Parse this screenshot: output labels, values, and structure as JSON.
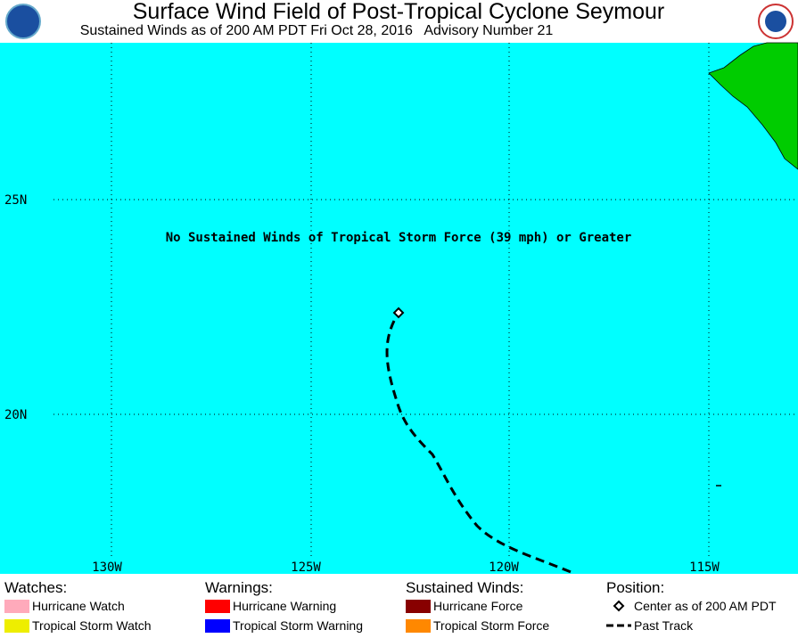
{
  "header": {
    "title": "Surface Wind Field of Post-Tropical Cyclone Seymour",
    "subtitle": "Sustained Winds as of 200 AM PDT Fri Oct 28, 2016   Advisory Number 21"
  },
  "map": {
    "latitudes": [
      "25N",
      "20N"
    ],
    "longitudes": [
      "130W",
      "125W",
      "120W",
      "115W"
    ],
    "annotation": "No Sustained Winds of Tropical Storm Force (39 mph) or Greater"
  },
  "legend": {
    "columns": [
      {
        "heading": "Watches:",
        "items": [
          {
            "label": "Hurricane Watch",
            "color": "#ffaabb"
          },
          {
            "label": "Tropical Storm Watch",
            "color": "#eeee00"
          }
        ]
      },
      {
        "heading": "Warnings:",
        "items": [
          {
            "label": "Hurricane Warning",
            "color": "#ff0000"
          },
          {
            "label": "Tropical Storm Warning",
            "color": "#0000ff"
          }
        ]
      },
      {
        "heading": "Sustained Winds:",
        "items": [
          {
            "label": "Hurricane Force",
            "color": "#880000"
          },
          {
            "label": "Tropical Storm Force",
            "color": "#ff8800"
          }
        ]
      },
      {
        "heading": "Position:",
        "items": [
          {
            "label": "Center as of 200 AM PDT",
            "symbol": "diamond"
          },
          {
            "label": "Past Track",
            "symbol": "dash"
          }
        ]
      }
    ]
  }
}
